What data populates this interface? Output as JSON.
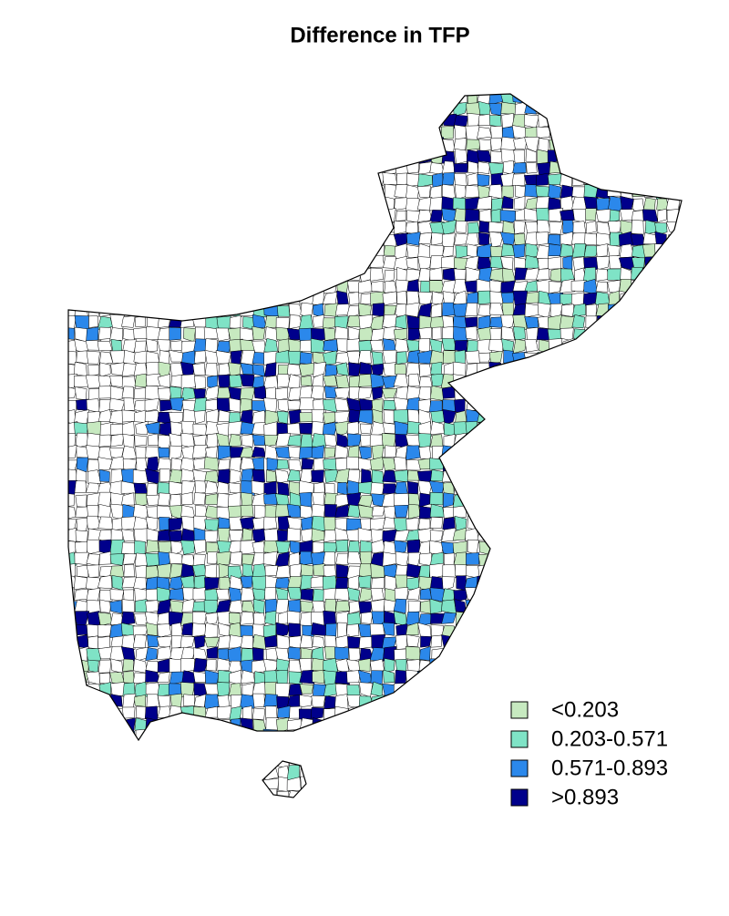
{
  "title": "Difference in TFP",
  "legend": {
    "items": [
      {
        "label": "<0.203",
        "color": "#c7e9c0"
      },
      {
        "label": "0.203-0.571",
        "color": "#7fe3c6"
      },
      {
        "label": "0.571-0.893",
        "color": "#2b88eb"
      },
      {
        "label": ">0.893",
        "color": "#00008b"
      }
    ]
  }
}
